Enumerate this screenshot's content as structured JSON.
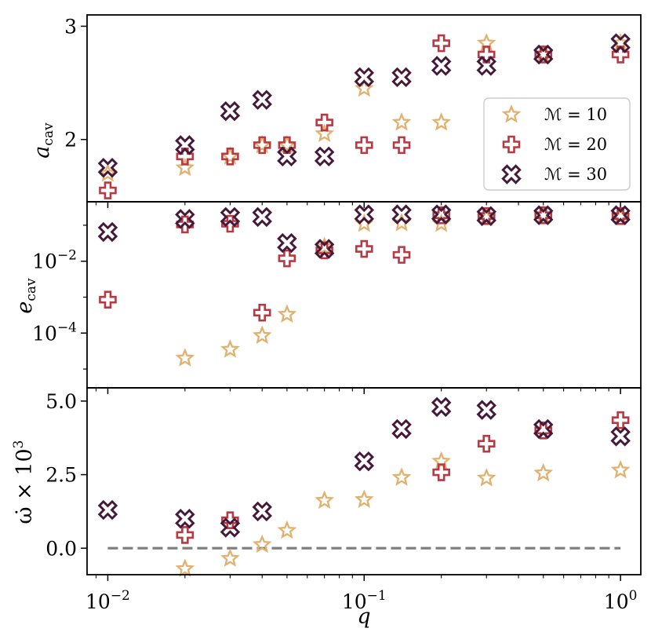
{
  "chart_data": [
    {
      "panel": "top",
      "type": "scatter",
      "ylabel": "a",
      "ylabel_sub": "cav",
      "yscale": "linear",
      "ylim": [
        1.45,
        3.1
      ],
      "yticks": [
        {
          "value": 2,
          "label": "2"
        },
        {
          "value": 3,
          "label": "3"
        }
      ],
      "legend": {
        "placement": "right",
        "entries": [
          {
            "prefix": "ℳ = ",
            "value": "10"
          },
          {
            "prefix": "ℳ = ",
            "value": "20"
          },
          {
            "prefix": "ℳ = ",
            "value": "30"
          }
        ]
      },
      "series": [
        {
          "name": "M=10",
          "points": [
            [
              0.01,
              1.7
            ],
            [
              0.02,
              1.75
            ],
            [
              0.03,
              1.85
            ],
            [
              0.04,
              1.95
            ],
            [
              0.05,
              1.95
            ],
            [
              0.07,
              2.05
            ],
            [
              0.1,
              2.45
            ],
            [
              0.14,
              2.15
            ],
            [
              0.2,
              2.15
            ],
            [
              0.3,
              2.85
            ],
            [
              0.5,
              2.75
            ],
            [
              1.0,
              2.85
            ]
          ]
        },
        {
          "name": "M=20",
          "points": [
            [
              0.01,
              1.55
            ],
            [
              0.02,
              1.85
            ],
            [
              0.03,
              1.85
            ],
            [
              0.04,
              1.95
            ],
            [
              0.05,
              1.95
            ],
            [
              0.07,
              2.15
            ],
            [
              0.1,
              1.95
            ],
            [
              0.14,
              1.95
            ],
            [
              0.2,
              2.85
            ],
            [
              0.3,
              2.75
            ],
            [
              0.5,
              2.75
            ],
            [
              1.0,
              2.75
            ]
          ]
        },
        {
          "name": "M=30",
          "points": [
            [
              0.01,
              1.75
            ],
            [
              0.02,
              1.95
            ],
            [
              0.03,
              2.25
            ],
            [
              0.04,
              2.35
            ],
            [
              0.05,
              1.85
            ],
            [
              0.07,
              1.85
            ],
            [
              0.1,
              2.55
            ],
            [
              0.14,
              2.55
            ],
            [
              0.2,
              2.65
            ],
            [
              0.3,
              2.65
            ],
            [
              0.5,
              2.75
            ],
            [
              1.0,
              2.85
            ]
          ]
        }
      ]
    },
    {
      "panel": "middle",
      "type": "scatter",
      "ylabel": "e",
      "ylabel_sub": "cav",
      "yscale": "log",
      "ylim": [
        3e-06,
        0.45
      ],
      "yticks": [
        {
          "value": 0.01,
          "base": "10",
          "exp": "−2"
        },
        {
          "value": 0.0001,
          "base": "10",
          "exp": "−4"
        }
      ],
      "series": [
        {
          "name": "M=10",
          "points": [
            [
              0.02,
              2e-05
            ],
            [
              0.03,
              3.5e-05
            ],
            [
              0.04,
              8.5e-05
            ],
            [
              0.05,
              0.00033
            ],
            [
              0.07,
              0.025
            ],
            [
              0.1,
              0.11
            ],
            [
              0.14,
              0.115
            ],
            [
              0.2,
              0.11
            ],
            [
              0.3,
              0.16
            ],
            [
              0.5,
              0.19
            ],
            [
              1.0,
              0.17
            ]
          ]
        },
        {
          "name": "M=20",
          "points": [
            [
              0.01,
              0.00085
            ],
            [
              0.02,
              0.105
            ],
            [
              0.03,
              0.11
            ],
            [
              0.04,
              0.00037
            ],
            [
              0.05,
              0.012
            ],
            [
              0.07,
              0.02
            ],
            [
              0.1,
              0.022
            ],
            [
              0.14,
              0.015
            ],
            [
              0.2,
              0.19
            ],
            [
              0.3,
              0.18
            ],
            [
              0.5,
              0.19
            ],
            [
              1.0,
              0.18
            ]
          ]
        },
        {
          "name": "M=30",
          "points": [
            [
              0.01,
              0.065
            ],
            [
              0.02,
              0.15
            ],
            [
              0.03,
              0.17
            ],
            [
              0.04,
              0.17
            ],
            [
              0.05,
              0.032
            ],
            [
              0.07,
              0.022
            ],
            [
              0.1,
              0.2
            ],
            [
              0.14,
              0.2
            ],
            [
              0.2,
              0.2
            ],
            [
              0.3,
              0.18
            ],
            [
              0.5,
              0.19
            ],
            [
              1.0,
              0.19
            ]
          ]
        }
      ]
    },
    {
      "panel": "bottom",
      "type": "scatter",
      "ylabel": "ω̇ × 10",
      "ylabel_exp": "3",
      "xlabel": "q",
      "yscale": "linear",
      "ylim": [
        -0.9,
        5.45
      ],
      "yticks": [
        {
          "value": 0,
          "label": "0.0"
        },
        {
          "value": 2.5,
          "label": "2.5"
        },
        {
          "value": 5,
          "label": "5.0"
        }
      ],
      "xscale": "log",
      "xlim": [
        0.0083,
        1.2
      ],
      "xticks": [
        {
          "value": 0.01,
          "base": "10",
          "exp": "−2"
        },
        {
          "value": 0.1,
          "base": "10",
          "exp": "−1"
        },
        {
          "value": 1,
          "base": "10",
          "exp": "0"
        }
      ],
      "reference_line": {
        "y": 0,
        "x_from": 0.01,
        "x_to": 1.0,
        "style": "dashed",
        "color": "#808080"
      },
      "series": [
        {
          "name": "M=10",
          "points": [
            [
              0.02,
              -0.7
            ],
            [
              0.03,
              -0.35
            ],
            [
              0.04,
              0.12
            ],
            [
              0.05,
              0.6
            ],
            [
              0.07,
              1.62
            ],
            [
              0.1,
              1.65
            ],
            [
              0.14,
              2.4
            ],
            [
              0.2,
              2.95
            ],
            [
              0.3,
              2.38
            ],
            [
              0.5,
              2.55
            ],
            [
              1.0,
              2.65
            ]
          ]
        },
        {
          "name": "M=20",
          "points": [
            [
              0.02,
              0.45
            ],
            [
              0.03,
              0.95
            ],
            [
              0.2,
              2.58
            ],
            [
              0.3,
              3.55
            ],
            [
              0.5,
              4.0
            ],
            [
              1.0,
              4.35
            ]
          ]
        },
        {
          "name": "M=30",
          "points": [
            [
              0.01,
              1.3
            ],
            [
              0.02,
              1.0
            ],
            [
              0.03,
              0.7
            ],
            [
              0.04,
              1.25
            ],
            [
              0.1,
              2.95
            ],
            [
              0.14,
              4.05
            ],
            [
              0.2,
              4.8
            ],
            [
              0.3,
              4.7
            ],
            [
              0.5,
              4.05
            ],
            [
              1.0,
              3.8
            ]
          ]
        }
      ]
    }
  ],
  "styles": {
    "M=10": {
      "marker": "star",
      "color": "#E3B06E"
    },
    "M=20": {
      "marker": "plus",
      "color": "#B73A42"
    },
    "M=30": {
      "marker": "cross",
      "color": "#451939"
    }
  }
}
